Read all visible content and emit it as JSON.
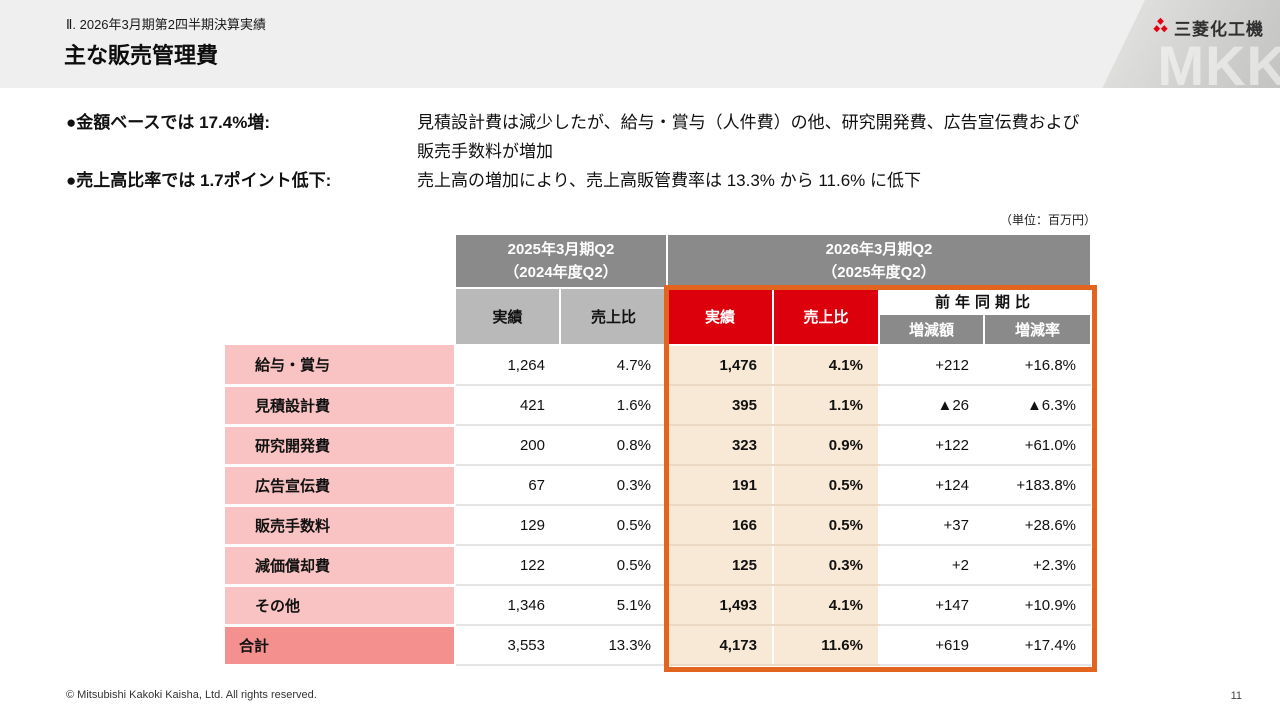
{
  "slide": {
    "breadcrumb": "Ⅱ. 2026年3月期第2四半期決算実績",
    "title": "主な販売管理費",
    "logo": {
      "company": "三菱化工機",
      "watermark": "MKK",
      "mark_color": "#e60012"
    },
    "footer": {
      "copyright": "© Mitsubishi Kakoki Kaisha, Ltd. All rights reserved.",
      "page": "11"
    }
  },
  "bullets": [
    {
      "lead": "●金額ベースでは 17.4%増:",
      "desc": [
        "見積設計費は減少したが、給与・賞与（人件費）の他、研究開発費、広告宣伝費および",
        "販売手数料が増加"
      ]
    },
    {
      "lead": "●売上高比率では 1.7ポイント低下:",
      "desc": [
        "売上高の増加により、売上高販管費率は 13.3% から 11.6% に低下"
      ]
    }
  ],
  "table": {
    "unit_note": "（単位：百万円）",
    "prev_period": {
      "line1": "2025年3月期Q2",
      "line2": "（2024年度Q2）"
    },
    "curr_period": {
      "line1": "2026年3月期Q2",
      "line2": "（2025年度Q2）"
    },
    "subheaders": {
      "actual": "実績",
      "ratio": "売上比",
      "yoy": "前年同期比",
      "yoy_amount": "増減額",
      "yoy_rate": "増減率"
    },
    "rows": [
      {
        "label": "給与・賞与",
        "prev_actual": "1,264",
        "prev_ratio": "4.7%",
        "curr_actual": "1,476",
        "curr_ratio": "4.1%",
        "yoy_amount": "+212",
        "yoy_rate": "+16.8%",
        "total": false
      },
      {
        "label": "見積設計費",
        "prev_actual": "421",
        "prev_ratio": "1.6%",
        "curr_actual": "395",
        "curr_ratio": "1.1%",
        "yoy_amount": "▲26",
        "yoy_rate": "▲6.3%",
        "total": false
      },
      {
        "label": "研究開発費",
        "prev_actual": "200",
        "prev_ratio": "0.8%",
        "curr_actual": "323",
        "curr_ratio": "0.9%",
        "yoy_amount": "+122",
        "yoy_rate": "+61.0%",
        "total": false
      },
      {
        "label": "広告宣伝費",
        "prev_actual": "67",
        "prev_ratio": "0.3%",
        "curr_actual": "191",
        "curr_ratio": "0.5%",
        "yoy_amount": "+124",
        "yoy_rate": "+183.8%",
        "total": false
      },
      {
        "label": "販売手数料",
        "prev_actual": "129",
        "prev_ratio": "0.5%",
        "curr_actual": "166",
        "curr_ratio": "0.5%",
        "yoy_amount": "+37",
        "yoy_rate": "+28.6%",
        "total": false
      },
      {
        "label": "減価償却費",
        "prev_actual": "122",
        "prev_ratio": "0.5%",
        "curr_actual": "125",
        "curr_ratio": "0.3%",
        "yoy_amount": "+2",
        "yoy_rate": "+2.3%",
        "total": false
      },
      {
        "label": "その他",
        "prev_actual": "1,346",
        "prev_ratio": "5.1%",
        "curr_actual": "1,493",
        "curr_ratio": "4.1%",
        "yoy_amount": "+147",
        "yoy_rate": "+10.9%",
        "total": false
      },
      {
        "label": "合計",
        "prev_actual": "3,553",
        "prev_ratio": "13.3%",
        "curr_actual": "4,173",
        "curr_ratio": "11.6%",
        "yoy_amount": "+619",
        "yoy_rate": "+17.4%",
        "total": true
      }
    ]
  },
  "colors": {
    "accent_red": "#dc000c",
    "orange_frame": "#e2641e",
    "pink_label": "#f9c3c3",
    "pink_total": "#f4908e",
    "cream_highlight": "#f8e8d6",
    "gray_header_dark": "#8a8a8a",
    "gray_header_light": "#b9b9b9",
    "topbar_gray": "#efefef"
  }
}
